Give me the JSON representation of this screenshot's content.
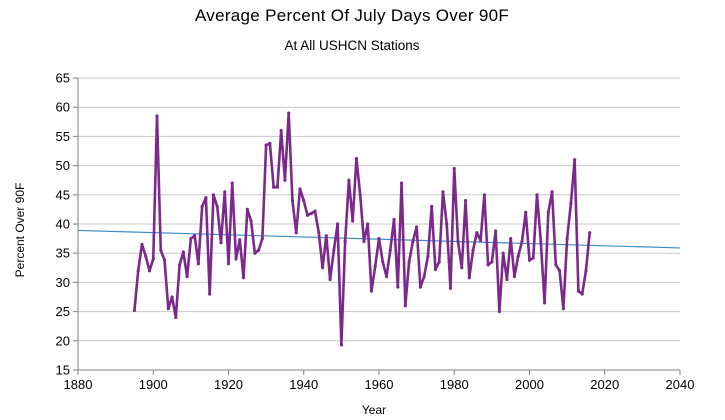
{
  "chart_data": {
    "type": "line",
    "title": "Average Percent Of July Days Over 90F",
    "subtitle": "At All USHCN Stations",
    "xlabel": "Year",
    "ylabel": "Percent Over 90F",
    "xlim": [
      1880,
      2040
    ],
    "ylim": [
      15,
      65
    ],
    "x_ticks": [
      1880,
      1900,
      1920,
      1940,
      1960,
      1980,
      2000,
      2020,
      2040
    ],
    "y_ticks": [
      15,
      20,
      25,
      30,
      35,
      40,
      45,
      50,
      55,
      60,
      65
    ],
    "grid": "horizontal",
    "series": [
      {
        "name": "Percent Over 90F",
        "color": "#7b2a8c",
        "x": [
          1895,
          1896,
          1897,
          1898,
          1899,
          1900,
          1901,
          1902,
          1903,
          1904,
          1905,
          1906,
          1907,
          1908,
          1909,
          1910,
          1911,
          1912,
          1913,
          1914,
          1915,
          1916,
          1917,
          1918,
          1919,
          1920,
          1921,
          1922,
          1923,
          1924,
          1925,
          1926,
          1927,
          1928,
          1929,
          1930,
          1931,
          1932,
          1933,
          1934,
          1935,
          1936,
          1937,
          1938,
          1939,
          1940,
          1941,
          1942,
          1943,
          1944,
          1945,
          1946,
          1947,
          1948,
          1949,
          1950,
          1951,
          1952,
          1953,
          1954,
          1955,
          1956,
          1957,
          1958,
          1959,
          1960,
          1961,
          1962,
          1963,
          1964,
          1965,
          1966,
          1967,
          1968,
          1969,
          1970,
          1971,
          1972,
          1973,
          1974,
          1975,
          1976,
          1977,
          1978,
          1979,
          1980,
          1981,
          1982,
          1983,
          1984,
          1985,
          1986,
          1987,
          1988,
          1989,
          1990,
          1991,
          1992,
          1993,
          1994,
          1995,
          1996,
          1997,
          1998,
          1999,
          2000,
          2001,
          2002,
          2003,
          2004,
          2005,
          2006,
          2007,
          2008,
          2009,
          2010,
          2011,
          2012,
          2013,
          2014,
          2015,
          2016
        ],
        "values": [
          25.2,
          32.0,
          36.5,
          34.5,
          32.0,
          34.0,
          58.5,
          35.5,
          33.8,
          25.5,
          27.5,
          24.0,
          33.0,
          35.2,
          31.0,
          37.5,
          38.0,
          33.2,
          43.0,
          44.5,
          28.0,
          45.0,
          43.0,
          36.8,
          45.5,
          33.2,
          47.0,
          34.0,
          37.3,
          30.8,
          42.5,
          40.5,
          35.0,
          35.5,
          37.5,
          53.5,
          53.8,
          46.3,
          46.3,
          56.0,
          47.5,
          59.0,
          44.0,
          38.5,
          46.0,
          44.0,
          41.5,
          41.8,
          42.2,
          38.5,
          32.5,
          38.0,
          30.5,
          35.5,
          40.0,
          19.3,
          37.0,
          47.5,
          40.5,
          51.2,
          45.0,
          37.0,
          40.0,
          28.5,
          32.8,
          37.5,
          33.5,
          31.0,
          35.5,
          40.8,
          29.2,
          47.0,
          26.0,
          33.5,
          37.0,
          39.5,
          29.2,
          31.0,
          34.5,
          43.0,
          32.2,
          33.5,
          45.5,
          40.0,
          29.0,
          49.5,
          37.0,
          32.5,
          44.0,
          30.8,
          35.5,
          38.5,
          37.2,
          45.0,
          33.0,
          33.5,
          38.8,
          25.0,
          35.0,
          30.5,
          37.5,
          31.0,
          34.5,
          37.0,
          42.0,
          33.8,
          34.2,
          45.0,
          37.0,
          26.5,
          42.0,
          45.5,
          33.0,
          32.0,
          25.5,
          37.5,
          43.5,
          51.0,
          28.5,
          28.0,
          32.0,
          38.5
        ]
      },
      {
        "name": "Linear trend",
        "color": "#3c8ec8",
        "x": [
          1880,
          2040
        ],
        "values": [
          38.9,
          35.9
        ]
      }
    ]
  }
}
